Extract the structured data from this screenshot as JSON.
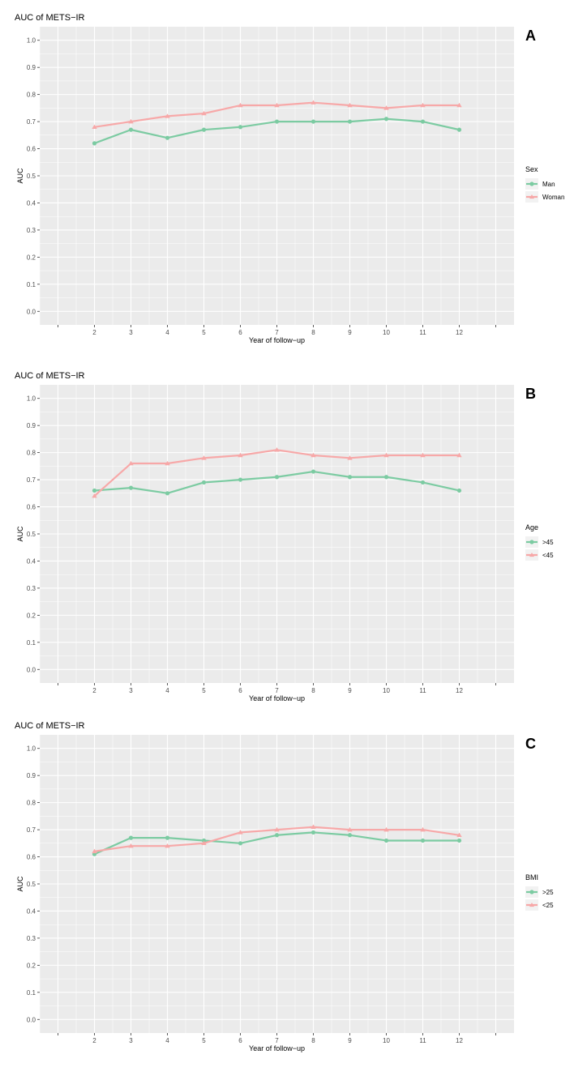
{
  "chart_data": [
    {
      "type": "line",
      "panel_letter": "A",
      "title": "AUC of METS−IR",
      "xlabel": "Year of follow−up",
      "ylabel": "AUC",
      "x": [
        2,
        3,
        4,
        5,
        6,
        7,
        8,
        9,
        10,
        11,
        12
      ],
      "xlim": [
        0.5,
        13.5
      ],
      "ylim": [
        -0.05,
        1.05
      ],
      "yticks": [
        0.0,
        0.1,
        0.2,
        0.3,
        0.4,
        0.5,
        0.6,
        0.7,
        0.8,
        0.9,
        1.0
      ],
      "ytick_labels": [
        "0.0",
        "0.1",
        "0.2",
        "0.3",
        "0.4",
        "0.5",
        "0.6",
        "0.7",
        "0.8",
        "0.9",
        "1.0"
      ],
      "xtick_labels": [
        "2",
        "3",
        "4",
        "5",
        "6",
        "7",
        "8",
        "9",
        "10",
        "11",
        "12"
      ],
      "legend_title": "Sex",
      "series": [
        {
          "name": "Man",
          "color": "#7ccba2",
          "marker": "circle",
          "values": [
            0.62,
            0.67,
            0.64,
            0.67,
            0.68,
            0.7,
            0.7,
            0.7,
            0.71,
            0.7,
            0.67
          ]
        },
        {
          "name": "Woman",
          "color": "#f7a8a8",
          "marker": "triangle",
          "values": [
            0.68,
            0.7,
            0.72,
            0.73,
            0.76,
            0.76,
            0.77,
            0.76,
            0.75,
            0.76,
            0.76
          ]
        }
      ]
    },
    {
      "type": "line",
      "panel_letter": "B",
      "title": "AUC of METS−IR",
      "xlabel": "Year of follow−up",
      "ylabel": "AUC",
      "x": [
        2,
        3,
        4,
        5,
        6,
        7,
        8,
        9,
        10,
        11,
        12
      ],
      "xlim": [
        0.5,
        13.5
      ],
      "ylim": [
        -0.05,
        1.05
      ],
      "yticks": [
        0.0,
        0.1,
        0.2,
        0.3,
        0.4,
        0.5,
        0.6,
        0.7,
        0.8,
        0.9,
        1.0
      ],
      "ytick_labels": [
        "0.0",
        "0.1",
        "0.2",
        "0.3",
        "0.4",
        "0.5",
        "0.6",
        "0.7",
        "0.8",
        "0.9",
        "1.0"
      ],
      "xtick_labels": [
        "2",
        "3",
        "4",
        "5",
        "6",
        "7",
        "8",
        "9",
        "10",
        "11",
        "12"
      ],
      "legend_title": "Age",
      "series": [
        {
          "name": ">45",
          "color": "#7ccba2",
          "marker": "circle",
          "values": [
            0.66,
            0.67,
            0.65,
            0.69,
            0.7,
            0.71,
            0.73,
            0.71,
            0.71,
            0.69,
            0.66
          ]
        },
        {
          "name": "<45",
          "color": "#f7a8a8",
          "marker": "triangle",
          "values": [
            0.64,
            0.76,
            0.76,
            0.78,
            0.79,
            0.81,
            0.79,
            0.78,
            0.79,
            0.79,
            0.79
          ]
        }
      ]
    },
    {
      "type": "line",
      "panel_letter": "C",
      "title": "AUC of METS−IR",
      "xlabel": "Year of follow−up",
      "ylabel": "AUC",
      "x": [
        2,
        3,
        4,
        5,
        6,
        7,
        8,
        9,
        10,
        11,
        12
      ],
      "xlim": [
        0.5,
        13.5
      ],
      "ylim": [
        -0.05,
        1.05
      ],
      "yticks": [
        0.0,
        0.1,
        0.2,
        0.3,
        0.4,
        0.5,
        0.6,
        0.7,
        0.8,
        0.9,
        1.0
      ],
      "ytick_labels": [
        "0.0",
        "0.1",
        "0.2",
        "0.3",
        "0.4",
        "0.5",
        "0.6",
        "0.7",
        "0.8",
        "0.9",
        "1.0"
      ],
      "xtick_labels": [
        "2",
        "3",
        "4",
        "5",
        "6",
        "7",
        "8",
        "9",
        "10",
        "11",
        "12"
      ],
      "legend_title": "BMI",
      "series": [
        {
          "name": ">25",
          "color": "#7ccba2",
          "marker": "circle",
          "values": [
            0.61,
            0.67,
            0.67,
            0.66,
            0.65,
            0.68,
            0.69,
            0.68,
            0.66,
            0.66,
            0.66
          ]
        },
        {
          "name": "<25",
          "color": "#f7a8a8",
          "marker": "triangle",
          "values": [
            0.62,
            0.64,
            0.64,
            0.65,
            0.69,
            0.7,
            0.71,
            0.7,
            0.7,
            0.7,
            0.68
          ]
        }
      ]
    }
  ],
  "theme": {
    "panel_bg": "#ebebeb",
    "grid_color": "#ffffff",
    "text_color": "#4d4d4d",
    "title_color": "#000000"
  }
}
